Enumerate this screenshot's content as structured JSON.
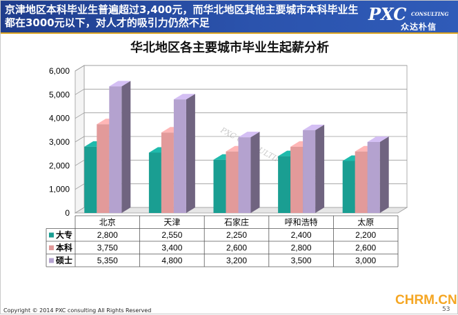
{
  "header": {
    "headline": "京津地区本科毕业生普遍超过3,400元，而华北地区其他主要城市本科毕业生都在3000元以下，对人才的吸引力仍然不足",
    "logo_mark": "PXC",
    "logo_sub": "CONSULTING",
    "logo_cn": "众达朴信"
  },
  "colors": {
    "header_bg": "#2b53ad",
    "header_rule": "#d9a11c",
    "series": [
      "#1a9e92",
      "#e29a9a",
      "#b4a2cf"
    ]
  },
  "chart_data": {
    "type": "bar",
    "title": "华北地区各主要城市毕业生起薪分析",
    "categories": [
      "北京",
      "天津",
      "石家庄",
      "呼和浩特",
      "太原"
    ],
    "series": [
      {
        "name": "大专",
        "values": [
          2800,
          2550,
          2250,
          2400,
          2200
        ],
        "value_labels": [
          "2,800",
          "2,550",
          "2,250",
          "2,400",
          "2,200"
        ]
      },
      {
        "name": "本科",
        "values": [
          3750,
          3400,
          2600,
          2800,
          2600
        ],
        "value_labels": [
          "3,750",
          "3,400",
          "2,600",
          "2,800",
          "2,600"
        ]
      },
      {
        "name": "硕士",
        "values": [
          5350,
          4800,
          3200,
          3500,
          3000
        ],
        "value_labels": [
          "5,350",
          "4,800",
          "3,200",
          "3,500",
          "3,000"
        ]
      }
    ],
    "ylim": [
      0,
      6000
    ],
    "yticks": [
      "0",
      "1,000",
      "2,000",
      "3,000",
      "4,000",
      "5,000",
      "6,000"
    ],
    "grid": true,
    "legend": "data-table",
    "style": "3d-clustered-column"
  },
  "watermark": "PXC CONSULTING 众达朴信",
  "footer": {
    "copyright": "Copyright © 2014 PXC consulting All Rights Reserved",
    "site_brand": "CHRM.CN",
    "page_number": "53"
  }
}
